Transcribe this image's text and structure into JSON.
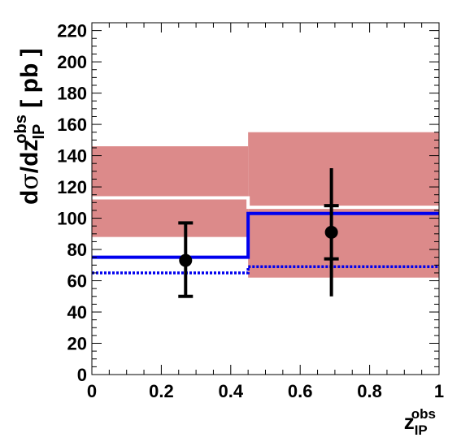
{
  "chart_data": {
    "type": "bar",
    "title": "",
    "xlabel": {
      "base": "z",
      "sub": "IP",
      "sup": "obs"
    },
    "ylabel": {
      "prefix": "d",
      "sigma": "σ",
      "mid": "/dz",
      "sub": "IP",
      "sup": "obs",
      "unit": " [ pb ]"
    },
    "xlim": [
      0,
      1
    ],
    "ylim": [
      0,
      225
    ],
    "x_ticks": [
      {
        "value": 0,
        "label": "0"
      },
      {
        "value": 0.2,
        "label": "0.2"
      },
      {
        "value": 0.4,
        "label": "0.4"
      },
      {
        "value": 0.6,
        "label": "0.6"
      },
      {
        "value": 0.8,
        "label": "0.8"
      },
      {
        "value": 1,
        "label": "1"
      }
    ],
    "y_ticks": [
      {
        "value": 0,
        "label": "0"
      },
      {
        "value": 20,
        "label": "20"
      },
      {
        "value": 40,
        "label": "40"
      },
      {
        "value": 60,
        "label": "60"
      },
      {
        "value": 80,
        "label": "80"
      },
      {
        "value": 100,
        "label": "100"
      },
      {
        "value": 120,
        "label": "120"
      },
      {
        "value": 140,
        "label": "140"
      },
      {
        "value": 160,
        "label": "160"
      },
      {
        "value": 180,
        "label": "180"
      },
      {
        "value": 200,
        "label": "200"
      },
      {
        "value": 220,
        "label": "220"
      }
    ],
    "bin_edges": [
      0,
      0.45,
      1.0
    ],
    "uncertainty_band": {
      "color": "#dc8a8a",
      "low": [
        88,
        62
      ],
      "high": [
        146,
        155
      ]
    },
    "series": [
      {
        "style": "solid",
        "color": "#ffffff",
        "values": [
          113,
          107
        ]
      },
      {
        "style": "solid",
        "color": "#0000ee",
        "values": [
          75,
          103
        ]
      },
      {
        "style": "dotted",
        "color": "#0000ee",
        "values": [
          65,
          69
        ]
      }
    ],
    "data_points": [
      {
        "x": 0.27,
        "y": 73,
        "stat_low": 50,
        "stat_high": 97,
        "tot_low": 50,
        "tot_high": 97
      },
      {
        "x": 0.69,
        "y": 91,
        "stat_low": 74,
        "stat_high": 108,
        "tot_low": 50,
        "tot_high": 132
      }
    ]
  }
}
